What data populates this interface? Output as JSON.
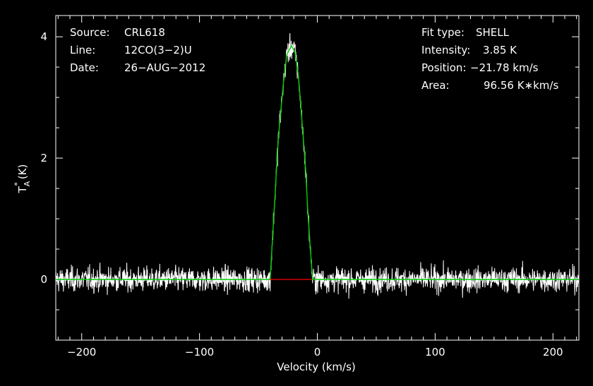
{
  "chart_data": {
    "type": "line",
    "xlabel": "Velocity (km/s)",
    "ylabel": "T",
    "ylabel_sub": "A",
    "ylabel_sup": "*",
    "ylabel_unit": "(K)",
    "xlim": [
      -222,
      222
    ],
    "ylim": [
      -1.0,
      4.35
    ],
    "x_ticks": [
      -200,
      -100,
      0,
      100,
      200
    ],
    "x_tick_labels": [
      "−200",
      "−100",
      "0",
      "100",
      "200"
    ],
    "y_ticks": [
      0,
      2,
      4
    ],
    "y_tick_labels": [
      "0",
      "2",
      "4"
    ],
    "grid": false,
    "colors": {
      "background": "#000000",
      "spectrum": "#ffffff",
      "fit": "#00cc00",
      "baseline_segment": "#ff0000",
      "axes": "#ffffff"
    },
    "info_left": [
      {
        "key": "Source:",
        "value": "CRL618"
      },
      {
        "key": "Line:",
        "value": "12CO(3−2)U"
      },
      {
        "key": "Date:",
        "value": "26−AUG−2012"
      }
    ],
    "info_right": [
      {
        "key": "Fit type:",
        "value": "SHELL"
      },
      {
        "key": "Intensity:",
        "value": "3.85 K"
      },
      {
        "key": "Position:",
        "value": "−21.78 km/s"
      },
      {
        "key": "Area:",
        "value": "96.56 K∗km/s"
      }
    ],
    "spectrum": {
      "name": "observed",
      "x_range": [
        -222,
        222
      ],
      "noise_rms": 0.17,
      "line_peak": 3.85,
      "line_center": -21.78,
      "note_points": "noisy channels"
    },
    "series": [
      {
        "name": "fit",
        "x": [
          -222,
          -41,
          -40,
          -36,
          -33,
          -29,
          -26,
          -22,
          -19,
          -16,
          -13,
          -10,
          -8,
          -5,
          -4,
          222
        ],
        "values": [
          0,
          0,
          0.02,
          1.35,
          2.35,
          3.2,
          3.7,
          3.85,
          3.75,
          3.35,
          2.6,
          1.85,
          1.1,
          0.25,
          0,
          0
        ]
      }
    ],
    "baseline_segment": {
      "x": [
        -42,
        -3
      ],
      "y": 0
    }
  }
}
